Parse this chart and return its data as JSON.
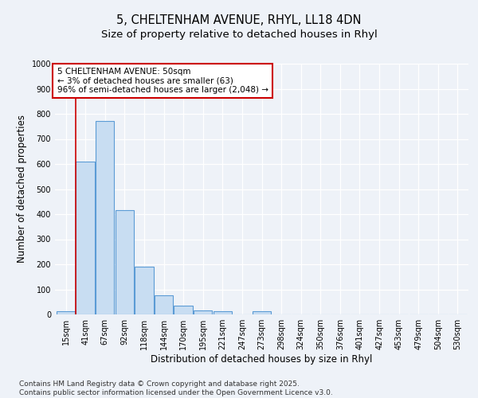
{
  "title_line1": "5, CHELTENHAM AVENUE, RHYL, LL18 4DN",
  "title_line2": "Size of property relative to detached houses in Rhyl",
  "xlabel": "Distribution of detached houses by size in Rhyl",
  "ylabel": "Number of detached properties",
  "categories": [
    "15sqm",
    "41sqm",
    "67sqm",
    "92sqm",
    "118sqm",
    "144sqm",
    "170sqm",
    "195sqm",
    "221sqm",
    "247sqm",
    "273sqm",
    "298sqm",
    "324sqm",
    "350sqm",
    "376sqm",
    "401sqm",
    "427sqm",
    "453sqm",
    "479sqm",
    "504sqm",
    "530sqm"
  ],
  "values": [
    13,
    608,
    770,
    415,
    190,
    75,
    35,
    15,
    12,
    0,
    12,
    0,
    0,
    0,
    0,
    0,
    0,
    0,
    0,
    0,
    0
  ],
  "bar_color": "#c8ddf2",
  "bar_edge_color": "#5b9bd5",
  "annotation_text": "5 CHELTENHAM AVENUE: 50sqm\n← 3% of detached houses are smaller (63)\n96% of semi-detached houses are larger (2,048) →",
  "annotation_box_color": "#ffffff",
  "annotation_box_edge": "#cc0000",
  "vline_color": "#cc0000",
  "vline_x": 0.5,
  "ylim": [
    0,
    1000
  ],
  "yticks": [
    0,
    100,
    200,
    300,
    400,
    500,
    600,
    700,
    800,
    900,
    1000
  ],
  "background_color": "#eef2f8",
  "grid_color": "#ffffff",
  "footer_text": "Contains HM Land Registry data © Crown copyright and database right 2025.\nContains public sector information licensed under the Open Government Licence v3.0.",
  "title_fontsize": 10.5,
  "subtitle_fontsize": 9.5,
  "axis_label_fontsize": 8.5,
  "tick_fontsize": 7,
  "annotation_fontsize": 7.5,
  "footer_fontsize": 6.5
}
